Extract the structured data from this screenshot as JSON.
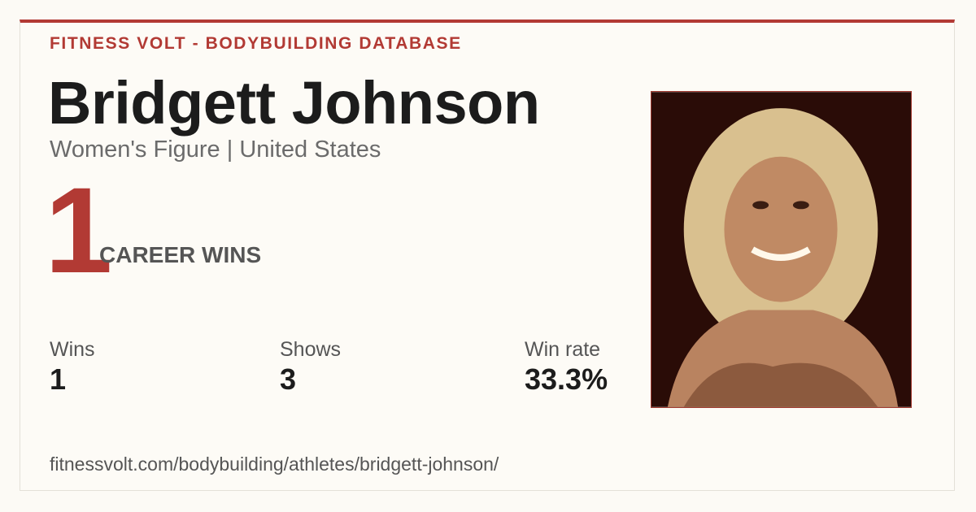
{
  "header": {
    "site": "FITNESS VOLT - BODYBUILDING DATABASE"
  },
  "athlete": {
    "name": "Bridgett Johnson",
    "subtitle": "Women's Figure | United States"
  },
  "career": {
    "count": "1",
    "label": "CAREER WINS"
  },
  "stats": [
    {
      "label": "Wins",
      "value": "1"
    },
    {
      "label": "Shows",
      "value": "3"
    },
    {
      "label": "Win rate",
      "value": "33.3%"
    }
  ],
  "url": "fitnessvolt.com/bodybuilding/athletes/bridgett-johnson/"
}
